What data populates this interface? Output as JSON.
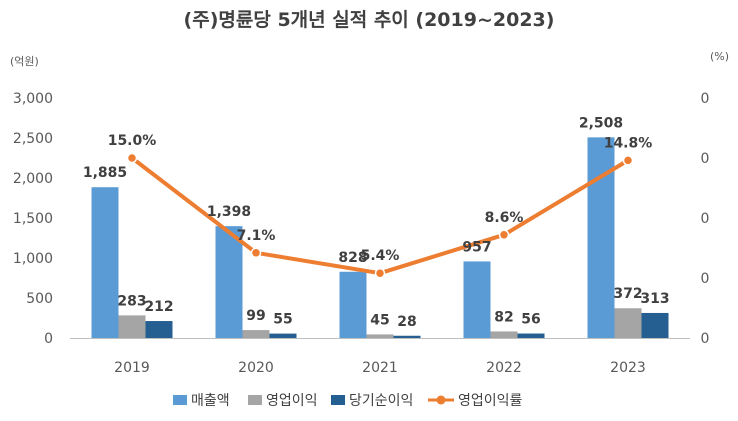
{
  "chart_data": {
    "type": "bar",
    "title": "(주)명륜당 5개년 실적 추이 (2019~2023)",
    "left_unit": "(억원)",
    "right_unit": "(%)",
    "categories": [
      "2019",
      "2020",
      "2021",
      "2022",
      "2023"
    ],
    "ylim": [
      0,
      3000
    ],
    "yticks": [
      0,
      500,
      1000,
      1500,
      2000,
      2500,
      3000
    ],
    "ytick_labels": [
      "0",
      "500",
      "1,000",
      "1,500",
      "2,000",
      "2,500",
      "3,000"
    ],
    "y2lim": [
      0,
      20
    ],
    "y2tick_labels": [
      "0",
      "0",
      "0",
      "0",
      "0"
    ],
    "series": [
      {
        "name": "매출액",
        "type": "bar",
        "color": "#5B9BD5",
        "values": [
          1885,
          1398,
          828,
          957,
          2508
        ],
        "labels": [
          "1,885",
          "1,398",
          "828",
          "957",
          "2,508"
        ]
      },
      {
        "name": "영업이익",
        "type": "bar",
        "color": "#A5A5A5",
        "values": [
          283,
          99,
          45,
          82,
          372
        ],
        "labels": [
          "283",
          "99",
          "45",
          "82",
          "372"
        ]
      },
      {
        "name": "당기순이익",
        "type": "bar",
        "color": "#255E91",
        "values": [
          212,
          55,
          28,
          56,
          313
        ],
        "labels": [
          "212",
          "55",
          "28",
          "56",
          "313"
        ]
      },
      {
        "name": "영업이익률",
        "type": "line",
        "axis": "right",
        "color": "#ED7D31",
        "values": [
          15.0,
          7.1,
          5.4,
          8.6,
          14.8
        ],
        "labels": [
          "15.0%",
          "7.1%",
          "5.4%",
          "8.6%",
          "14.8%"
        ]
      }
    ],
    "legend": [
      "매출액",
      "영업이익",
      "당기순이익",
      "영업이익률"
    ],
    "legend_position": "bottom",
    "grid": false
  }
}
